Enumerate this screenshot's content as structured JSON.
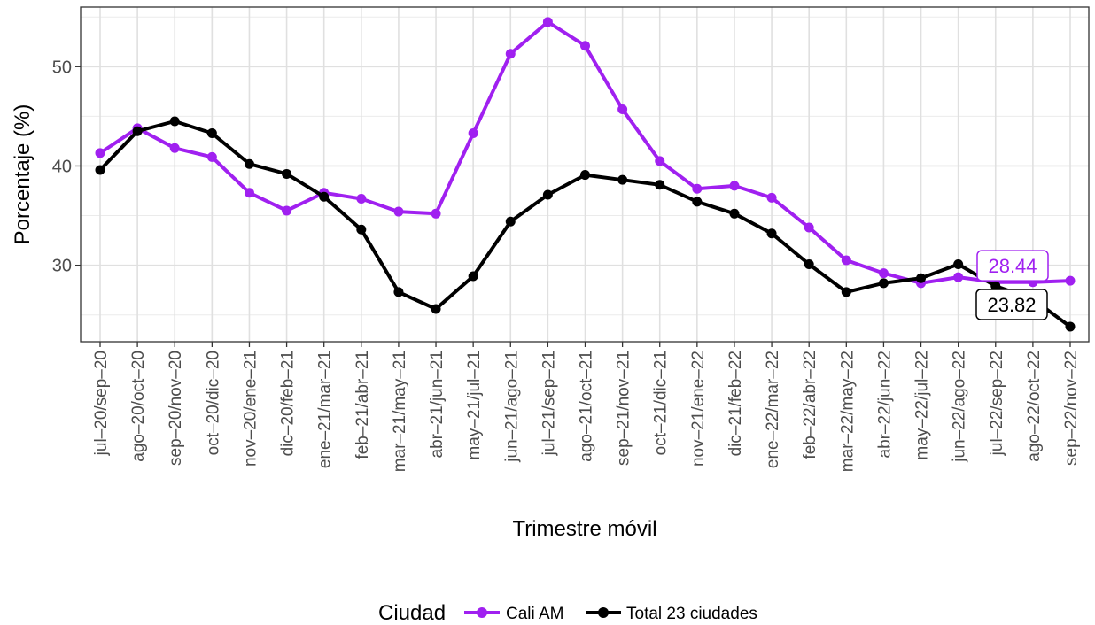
{
  "chart_data": {
    "type": "line",
    "title": "",
    "xlabel": "Trimestre móvil",
    "ylabel": "Porcentaje (%)",
    "ylim": [
      22.3,
      56.0
    ],
    "yticks": [
      30,
      40,
      50
    ],
    "grid": true,
    "categories": [
      "jul–20/sep–20",
      "ago–20/oct–20",
      "sep–20/nov–20",
      "oct–20/dic–20",
      "nov–20/ene–21",
      "dic–20/feb–21",
      "ene–21/mar–21",
      "feb–21/abr–21",
      "mar–21/may–21",
      "abr–21/jun–21",
      "may–21/jul–21",
      "jun–21/ago–21",
      "jul–21/sep–21",
      "ago–21/oct–21",
      "sep–21/nov–21",
      "oct–21/dic–21",
      "nov–21/ene–22",
      "dic–21/feb–22",
      "ene–22/mar–22",
      "feb–22/abr–22",
      "mar–22/may–22",
      "abr–22/jun–22",
      "may–22/jul–22",
      "jun–22/ago–22",
      "jul–22/sep–22",
      "ago–22/oct–22",
      "sep–22/nov–22"
    ],
    "series": [
      {
        "name": "Cali AM",
        "color": "#a020f0",
        "values": [
          41.3,
          43.8,
          41.8,
          40.9,
          37.3,
          35.5,
          37.3,
          36.7,
          35.4,
          35.2,
          43.3,
          51.3,
          54.5,
          52.1,
          45.7,
          40.5,
          37.7,
          38.0,
          36.8,
          33.8,
          30.5,
          29.2,
          28.2,
          28.8,
          28.3,
          28.3,
          28.44
        ],
        "end_label": "28.44"
      },
      {
        "name": "Total 23 ciudades",
        "color": "#000000",
        "values": [
          39.6,
          43.5,
          44.5,
          43.3,
          40.2,
          39.2,
          36.9,
          33.6,
          27.3,
          25.6,
          28.9,
          34.4,
          37.1,
          39.1,
          38.6,
          38.1,
          36.4,
          35.2,
          33.2,
          30.1,
          27.3,
          28.2,
          28.7,
          30.1,
          27.9,
          26.6,
          23.82
        ],
        "end_label": "23.82"
      }
    ],
    "legend": {
      "title": "Ciudad",
      "position": "bottom"
    }
  }
}
